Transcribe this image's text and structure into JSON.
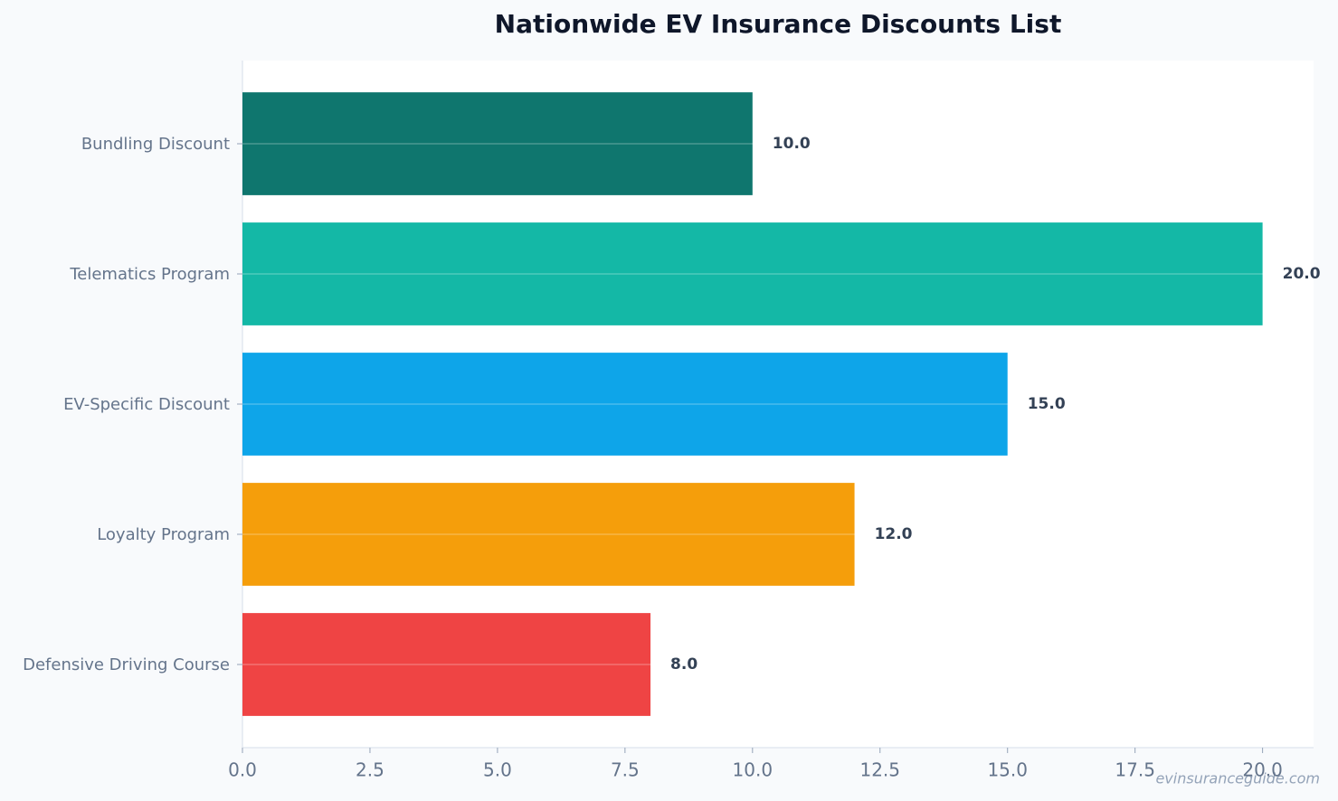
{
  "chart_data": {
    "type": "hbar",
    "title": "Nationwide EV Insurance Discounts List",
    "categories": [
      "Bundling Discount",
      "Telematics Program",
      "EV-Specific Discount",
      "Loyalty Program",
      "Defensive Driving Course"
    ],
    "values": [
      10,
      20,
      15,
      12,
      8
    ],
    "value_labels": [
      "10.0",
      "20.0",
      "15.0",
      "12.0",
      "8.0"
    ],
    "colors": [
      "#0f766e",
      "#14b8a6",
      "#0ea5e9",
      "#f59e0b",
      "#ef4444"
    ],
    "xlim": [
      0,
      21
    ],
    "xticks": [
      {
        "value": 0,
        "label": "0.0"
      },
      {
        "value": 2.5,
        "label": "2.5"
      },
      {
        "value": 5,
        "label": "5.0"
      },
      {
        "value": 7.5,
        "label": "7.5"
      },
      {
        "value": 10,
        "label": "10.0"
      },
      {
        "value": 12.5,
        "label": "12.5"
      },
      {
        "value": 15,
        "label": "15.0"
      },
      {
        "value": 17.5,
        "label": "17.5"
      },
      {
        "value": 20,
        "label": "20.0"
      }
    ],
    "watermark": "evinsuranceguide.com"
  }
}
